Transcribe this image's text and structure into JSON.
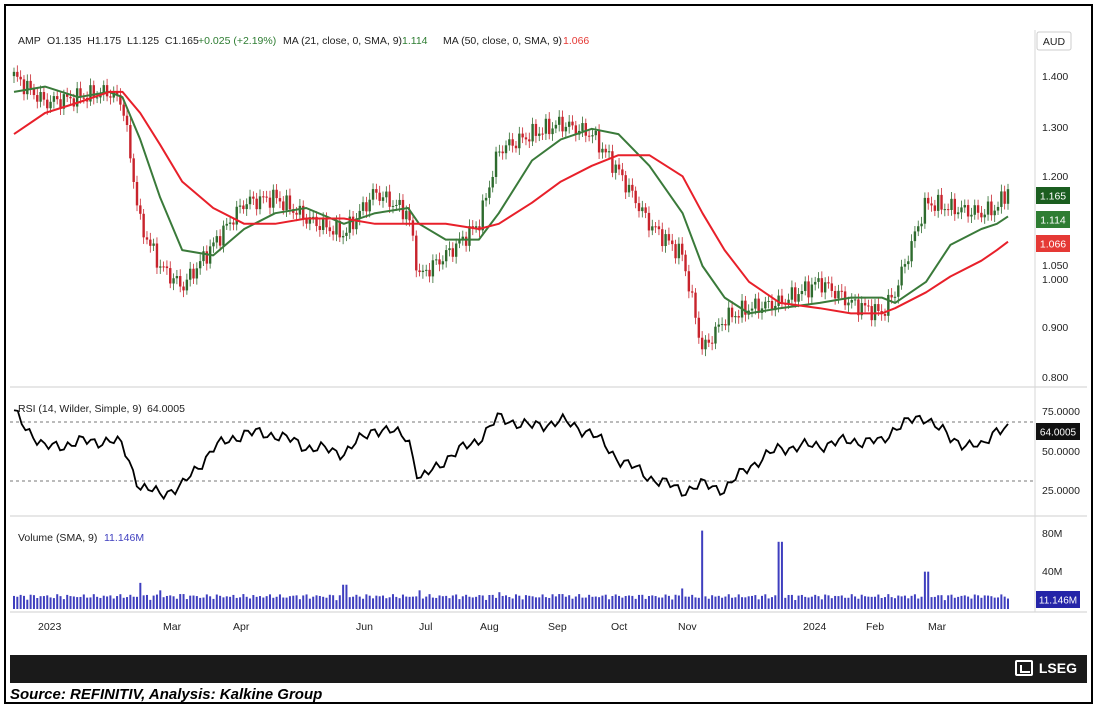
{
  "header": {
    "symbol": "AMP",
    "ohlc": "O1.135  H1.175  L1.125  C1.165",
    "change": "+0.025 (+2.19%)",
    "ma1_label": "MA (21, close, 0, SMA, 9)",
    "ma1_value": "1.114",
    "ma2_label": "MA (50, close, 0, SMA, 9)",
    "ma2_value": "1.066",
    "currency": "AUD"
  },
  "price_axis_ticks": [
    "1.400",
    "1.300",
    "1.200",
    "1.050",
    "1.000",
    "0.900",
    "0.800"
  ],
  "price_tags": {
    "close": "1.165",
    "ma21": "1.114",
    "ma50": "1.066"
  },
  "rsi_panel": {
    "label": "RSI (14, Wilder, Simple, 9)",
    "value": "64.0005",
    "ticks": [
      "75.0000",
      "50.0000",
      "25.0000"
    ],
    "tag": "64.0005"
  },
  "volume_panel": {
    "label": "Volume (SMA, 9)",
    "value": "11.146M",
    "ticks": [
      "80M",
      "40M"
    ],
    "tag": "11.146M"
  },
  "x_axis_labels": [
    "2023",
    "Mar",
    "Apr",
    "Jun",
    "Jul",
    "Aug",
    "Sep",
    "Oct",
    "Nov",
    "2024",
    "Feb",
    "Mar"
  ],
  "footer": {
    "brand": "LSEG",
    "source": "Source: REFINITIV, Analysis: Kalkine Group"
  },
  "colors": {
    "up": "#2e6b2e",
    "down": "#c8232c",
    "ma21": "#3a7a3a",
    "ma50": "#e8202a",
    "rsi": "#000000",
    "volume": "#3f3fbf"
  },
  "chart_data": [
    {
      "type": "line",
      "title": "AMP",
      "ylabel": "AUD",
      "ylim": [
        0.8,
        1.42
      ],
      "x": [
        "2023-01-03",
        "2023-01-17",
        "2023-02-01",
        "2023-02-15",
        "2023-02-21",
        "2023-03-01",
        "2023-03-10",
        "2023-03-20",
        "2023-04-03",
        "2023-04-17",
        "2023-05-01",
        "2023-05-15",
        "2023-06-01",
        "2023-06-15",
        "2023-06-30",
        "2023-07-05",
        "2023-07-17",
        "2023-08-01",
        "2023-08-10",
        "2023-08-25",
        "2023-09-07",
        "2023-09-21",
        "2023-10-03",
        "2023-10-17",
        "2023-11-01",
        "2023-11-10",
        "2023-11-20",
        "2023-12-01",
        "2023-12-15",
        "2024-01-02",
        "2024-01-16",
        "2024-01-30",
        "2024-02-05",
        "2024-02-19",
        "2024-03-01",
        "2024-03-15",
        "2024-03-22",
        "2024-03-27"
      ],
      "series": [
        {
          "name": "Close",
          "values": [
            1.38,
            1.33,
            1.34,
            1.35,
            1.33,
            1.1,
            1.02,
            0.98,
            1.06,
            1.14,
            1.15,
            1.11,
            1.08,
            1.16,
            1.12,
            1.0,
            1.04,
            1.1,
            1.24,
            1.27,
            1.29,
            1.27,
            1.2,
            1.1,
            1.04,
            0.86,
            0.92,
            0.94,
            0.95,
            0.99,
            0.95,
            0.93,
            0.97,
            1.14,
            1.13,
            1.12,
            1.13,
            1.165
          ]
        },
        {
          "name": "MA (21, close, 0, SMA, 9)",
          "values": [
            1.35,
            1.36,
            1.34,
            1.35,
            1.34,
            1.26,
            1.15,
            1.05,
            1.04,
            1.09,
            1.12,
            1.13,
            1.1,
            1.12,
            1.13,
            1.1,
            1.07,
            1.07,
            1.12,
            1.22,
            1.26,
            1.28,
            1.27,
            1.21,
            1.12,
            1.02,
            0.96,
            0.93,
            0.94,
            0.95,
            0.96,
            0.96,
            0.95,
            0.99,
            1.06,
            1.09,
            1.1,
            1.114
          ]
        },
        {
          "name": "MA (50, close, 0, SMA, 9)",
          "values": [
            1.27,
            1.31,
            1.33,
            1.35,
            1.35,
            1.31,
            1.25,
            1.18,
            1.13,
            1.1,
            1.1,
            1.11,
            1.11,
            1.1,
            1.1,
            1.1,
            1.1,
            1.09,
            1.1,
            1.14,
            1.18,
            1.21,
            1.23,
            1.23,
            1.19,
            1.12,
            1.05,
            0.99,
            0.95,
            0.94,
            0.93,
            0.93,
            0.94,
            0.97,
            1.0,
            1.03,
            1.05,
            1.066
          ]
        }
      ]
    },
    {
      "type": "line",
      "title": "RSI (14, Wilder, Simple, 9)",
      "ylim": [
        10,
        85
      ],
      "x": [
        "2023-01-03",
        "2023-01-17",
        "2023-02-01",
        "2023-02-15",
        "2023-02-21",
        "2023-03-01",
        "2023-03-10",
        "2023-03-20",
        "2023-04-03",
        "2023-04-17",
        "2023-05-01",
        "2023-05-15",
        "2023-06-01",
        "2023-06-15",
        "2023-06-30",
        "2023-07-05",
        "2023-07-17",
        "2023-08-01",
        "2023-08-10",
        "2023-08-25",
        "2023-09-07",
        "2023-09-21",
        "2023-10-03",
        "2023-10-17",
        "2023-11-01",
        "2023-11-10",
        "2023-11-20",
        "2023-12-01",
        "2023-12-15",
        "2024-01-02",
        "2024-01-16",
        "2024-01-30",
        "2024-02-05",
        "2024-02-19",
        "2024-03-01",
        "2024-03-15",
        "2024-03-22",
        "2024-03-27"
      ],
      "series": [
        {
          "name": "RSI",
          "values": [
            75,
            52,
            56,
            57,
            54,
            26,
            22,
            27,
            52,
            62,
            61,
            53,
            49,
            65,
            60,
            30,
            45,
            58,
            72,
            66,
            70,
            62,
            45,
            33,
            24,
            28,
            25,
            40,
            52,
            54,
            57,
            56,
            66,
            73,
            58,
            52,
            66,
            64
          ]
        }
      ],
      "reference_lines": [
        70,
        30
      ]
    },
    {
      "type": "bar",
      "title": "Volume (SMA, 9)",
      "ylim": [
        0,
        90
      ],
      "unit": "M",
      "x": [
        "2023-01-03",
        "2023-01-17",
        "2023-02-01",
        "2023-02-15",
        "2023-02-21",
        "2023-03-01",
        "2023-03-10",
        "2023-03-20",
        "2023-04-03",
        "2023-04-17",
        "2023-05-01",
        "2023-05-15",
        "2023-06-01",
        "2023-06-15",
        "2023-06-30",
        "2023-07-05",
        "2023-07-17",
        "2023-08-01",
        "2023-08-10",
        "2023-08-25",
        "2023-09-07",
        "2023-09-21",
        "2023-10-03",
        "2023-10-17",
        "2023-11-01",
        "2023-11-10",
        "2023-11-20",
        "2023-12-01",
        "2023-12-15",
        "2024-01-02",
        "2024-01-16",
        "2024-01-30",
        "2024-02-05",
        "2024-02-19",
        "2024-03-01",
        "2024-03-15",
        "2024-03-22",
        "2024-03-27"
      ],
      "values": [
        14,
        9,
        10,
        8,
        12,
        28,
        20,
        16,
        10,
        9,
        12,
        9,
        26,
        11,
        10,
        20,
        12,
        10,
        18,
        9,
        16,
        10,
        14,
        10,
        22,
        84,
        12,
        10,
        72,
        8,
        7,
        7,
        10,
        40,
        14,
        12,
        10,
        11.146
      ]
    }
  ]
}
